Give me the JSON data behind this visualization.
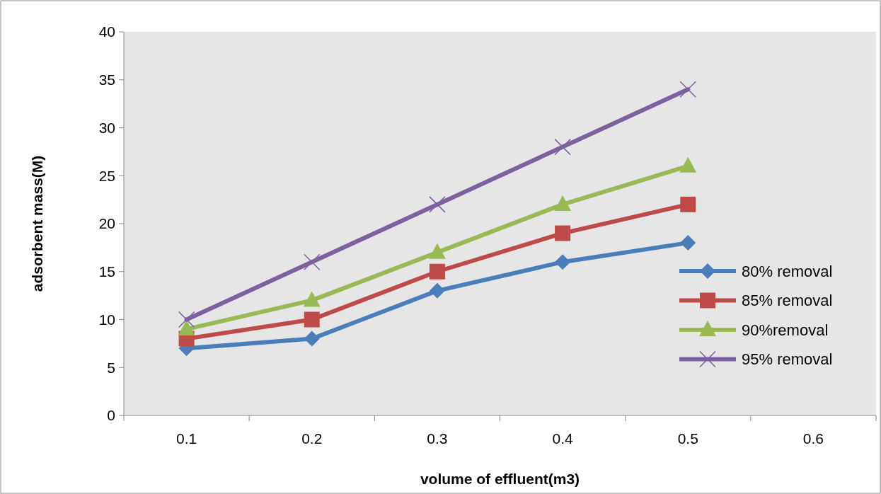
{
  "chart_data": {
    "type": "line",
    "xlabel": "volume of effluent(m3)",
    "ylabel": "adsorbent mass(M)",
    "categories": [
      "0.1",
      "0.2",
      "0.3",
      "0.4",
      "0.5",
      "0.6"
    ],
    "ylim": [
      0,
      40
    ],
    "yticks": [
      0,
      5,
      10,
      15,
      20,
      25,
      30,
      35,
      40
    ],
    "grid": false,
    "legend": "right",
    "series": [
      {
        "name": "80% removal",
        "color": "#4a7ebb",
        "marker": "diamond",
        "values": [
          7,
          8,
          13,
          16,
          18,
          null
        ]
      },
      {
        "name": "85% removal",
        "color": "#be4b48",
        "marker": "square",
        "values": [
          8,
          10,
          15,
          19,
          22,
          null
        ]
      },
      {
        "name": "90%removal",
        "color": "#98b954",
        "marker": "triangle",
        "values": [
          9,
          12,
          17,
          22,
          26,
          null
        ]
      },
      {
        "name": "95% removal",
        "color": "#7d60a0",
        "marker": "cross",
        "values": [
          10,
          16,
          22,
          28,
          34,
          null
        ]
      }
    ]
  }
}
